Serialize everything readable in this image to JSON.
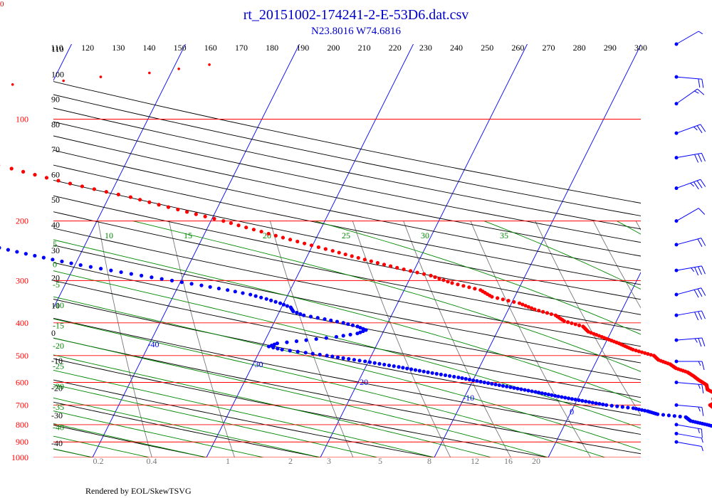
{
  "title": "rt_20151002-174241-2-E-53D6.dat.csv",
  "subtitle": "N23.8016 W74.6816",
  "footer": "Rendered by EOL/SkewTSVG",
  "corner_label": "0",
  "chart_data": {
    "type": "scatter",
    "chart_kind": "skew-t log-p",
    "pressure_ticks": [
      100,
      200,
      300,
      400,
      500,
      600,
      700,
      800,
      900,
      1000
    ],
    "temperature_ticks": [
      110,
      120,
      130,
      140,
      150,
      160,
      170,
      180,
      190,
      200,
      210,
      220,
      230,
      240,
      250,
      260,
      270,
      280,
      290,
      300
    ],
    "isotherm_labels": [
      -100,
      -90,
      -80,
      -70,
      -60,
      -50,
      -40,
      -30,
      -20,
      -10,
      0,
      10,
      20,
      30
    ],
    "dry_adiabat_labels_top": [
      110,
      100,
      90,
      80,
      70,
      60,
      50,
      40
    ],
    "dry_adiabat_labels_left": [
      30,
      20,
      10,
      0,
      -10,
      -20,
      -30,
      -40
    ],
    "moist_adiabat_labels_top": [
      10,
      15,
      20,
      25,
      30,
      35
    ],
    "moist_adiabat_labels_left": [
      5,
      0,
      -5,
      -10,
      -15,
      -20,
      -25,
      -30,
      -35,
      -40
    ],
    "mixing_ratio_labels": [
      "0.2",
      "0.4",
      "1",
      "2",
      "3",
      "5",
      "8",
      "12",
      "16",
      "20"
    ],
    "colors": {
      "temperature": "#ff0000",
      "dewpoint": "#0000ff",
      "isobar": "#ff0000",
      "isotherm": "#0000ff",
      "dry_adiabat": "#000000",
      "moist_adiabat": "#008800",
      "mixing_ratio": "#777777",
      "wind": "#0000ff",
      "title": "#0000cc"
    },
    "series": [
      {
        "name": "Temperature",
        "points": [
          [
            1000,
            24.6
          ],
          [
            985,
            23.8
          ],
          [
            970,
            22.8
          ],
          [
            950,
            21.6
          ],
          [
            925,
            20.5
          ],
          [
            900,
            19.5
          ],
          [
            875,
            18.8
          ],
          [
            850,
            17.9
          ],
          [
            825,
            17.5
          ],
          [
            800,
            16.7
          ],
          [
            780,
            15.5
          ],
          [
            760,
            15.2
          ],
          [
            745,
            15.6
          ],
          [
            735,
            14.6
          ],
          [
            715,
            12.4
          ],
          [
            700,
            11.9
          ],
          [
            690,
            12.2
          ],
          [
            670,
            11.9
          ],
          [
            650,
            12.0
          ],
          [
            630,
            11.0
          ],
          [
            610,
            10.7
          ],
          [
            590,
            9.8
          ],
          [
            575,
            9.2
          ],
          [
            560,
            8.5
          ],
          [
            545,
            7.3
          ],
          [
            530,
            6.6
          ],
          [
            515,
            5.4
          ],
          [
            500,
            4.8
          ],
          [
            480,
            2.7
          ],
          [
            460,
            1.2
          ],
          [
            440,
            -0.6
          ],
          [
            425,
            -2.0
          ],
          [
            410,
            -2.7
          ],
          [
            395,
            -4.6
          ],
          [
            380,
            -5.6
          ],
          [
            365,
            -7.7
          ],
          [
            350,
            -9.3
          ],
          [
            335,
            -12.0
          ],
          [
            320,
            -13.3
          ],
          [
            305,
            -16.1
          ],
          [
            290,
            -18.3
          ],
          [
            275,
            -21.6
          ],
          [
            260,
            -24.8
          ],
          [
            245,
            -28.0
          ],
          [
            230,
            -31.5
          ],
          [
            215,
            -35.1
          ],
          [
            200,
            -38.9
          ],
          [
            185,
            -43.4
          ],
          [
            170,
            -48.1
          ],
          [
            155,
            -54.0
          ],
          [
            140,
            -59.8
          ],
          [
            125,
            -66.3
          ],
          [
            115,
            -71.5
          ],
          [
            105,
            -76.5
          ],
          [
            100,
            -79.0
          ],
          [
            97,
            -79.8
          ]
        ]
      },
      {
        "name": "Temperature (upper, sparse)",
        "points": [
          [
            95,
            -80.2
          ],
          [
            93,
            -78.9
          ],
          [
            91,
            -77.5
          ],
          [
            89,
            -74.8
          ],
          [
            87,
            -70.5
          ],
          [
            85,
            -69.4
          ],
          [
            83,
            -68.6
          ],
          [
            81,
            -65.4
          ],
          [
            79,
            -63.4
          ],
          [
            77,
            -59.1
          ],
          [
            75,
            -56.0
          ],
          [
            73,
            -51.9
          ],
          [
            71,
            -49.5
          ],
          [
            69,
            -47.0
          ]
        ]
      },
      {
        "name": "Dewpoint",
        "points": [
          [
            1000,
            21.8
          ],
          [
            985,
            21.5
          ],
          [
            970,
            20.6
          ],
          [
            950,
            19.5
          ],
          [
            925,
            18.2
          ],
          [
            900,
            17.3
          ],
          [
            875,
            16.4
          ],
          [
            850,
            15.5
          ],
          [
            825,
            14.2
          ],
          [
            800,
            12.5
          ],
          [
            780,
            10.9
          ],
          [
            760,
            10.3
          ],
          [
            745,
            7.7
          ],
          [
            730,
            6.7
          ],
          [
            715,
            5.3
          ],
          [
            700,
            2.8
          ],
          [
            680,
            0.5
          ],
          [
            660,
            -1.8
          ],
          [
            640,
            -4.0
          ],
          [
            620,
            -6.4
          ],
          [
            600,
            -8.9
          ],
          [
            580,
            -11.4
          ],
          [
            560,
            -14.3
          ],
          [
            540,
            -17.1
          ],
          [
            520,
            -20.3
          ],
          [
            500,
            -23.9
          ],
          [
            490,
            -25.9
          ],
          [
            480,
            -28.1
          ],
          [
            470,
            -29.4
          ],
          [
            460,
            -28.8
          ],
          [
            450,
            -26.4
          ],
          [
            440,
            -23.9
          ],
          [
            430,
            -22.2
          ],
          [
            420,
            -21.6
          ],
          [
            410,
            -22.5
          ],
          [
            400,
            -23.9
          ],
          [
            390,
            -25.7
          ],
          [
            380,
            -27.7
          ],
          [
            370,
            -28.8
          ],
          [
            360,
            -29.2
          ],
          [
            350,
            -30.3
          ],
          [
            340,
            -31.7
          ],
          [
            330,
            -33.3
          ],
          [
            320,
            -35.5
          ],
          [
            310,
            -38.0
          ],
          [
            300,
            -40.8
          ],
          [
            290,
            -43.7
          ],
          [
            280,
            -46.6
          ],
          [
            270,
            -49.5
          ],
          [
            260,
            -52.2
          ],
          [
            250,
            -54.8
          ],
          [
            240,
            -57.4
          ],
          [
            230,
            -60.3
          ],
          [
            220,
            -63.4
          ],
          [
            210,
            -66.7
          ],
          [
            200,
            -70.1
          ],
          [
            190,
            -72.7
          ],
          [
            180,
            -73.7
          ]
        ]
      }
    ],
    "wind_barbs": [
      {
        "pressure": 60,
        "direction": 60,
        "speed": 5
      },
      {
        "pressure": 75,
        "direction": 95,
        "speed": 20
      },
      {
        "pressure": 90,
        "direction": 55,
        "speed": 15
      },
      {
        "pressure": 110,
        "direction": 70,
        "speed": 25
      },
      {
        "pressure": 130,
        "direction": 80,
        "speed": 30
      },
      {
        "pressure": 160,
        "direction": 70,
        "speed": 35
      },
      {
        "pressure": 200,
        "direction": 60,
        "speed": 10
      },
      {
        "pressure": 235,
        "direction": 75,
        "speed": 20
      },
      {
        "pressure": 280,
        "direction": 80,
        "speed": 35
      },
      {
        "pressure": 330,
        "direction": 75,
        "speed": 30
      },
      {
        "pressure": 380,
        "direction": 80,
        "speed": 30
      },
      {
        "pressure": 450,
        "direction": 85,
        "speed": 25
      },
      {
        "pressure": 520,
        "direction": 90,
        "speed": 15
      },
      {
        "pressure": 600,
        "direction": 95,
        "speed": 15
      },
      {
        "pressure": 700,
        "direction": 95,
        "speed": 15
      },
      {
        "pressure": 800,
        "direction": 100,
        "speed": 15
      },
      {
        "pressure": 850,
        "direction": 100,
        "speed": 5
      },
      {
        "pressure": 900,
        "direction": 100,
        "speed": 5
      }
    ]
  }
}
